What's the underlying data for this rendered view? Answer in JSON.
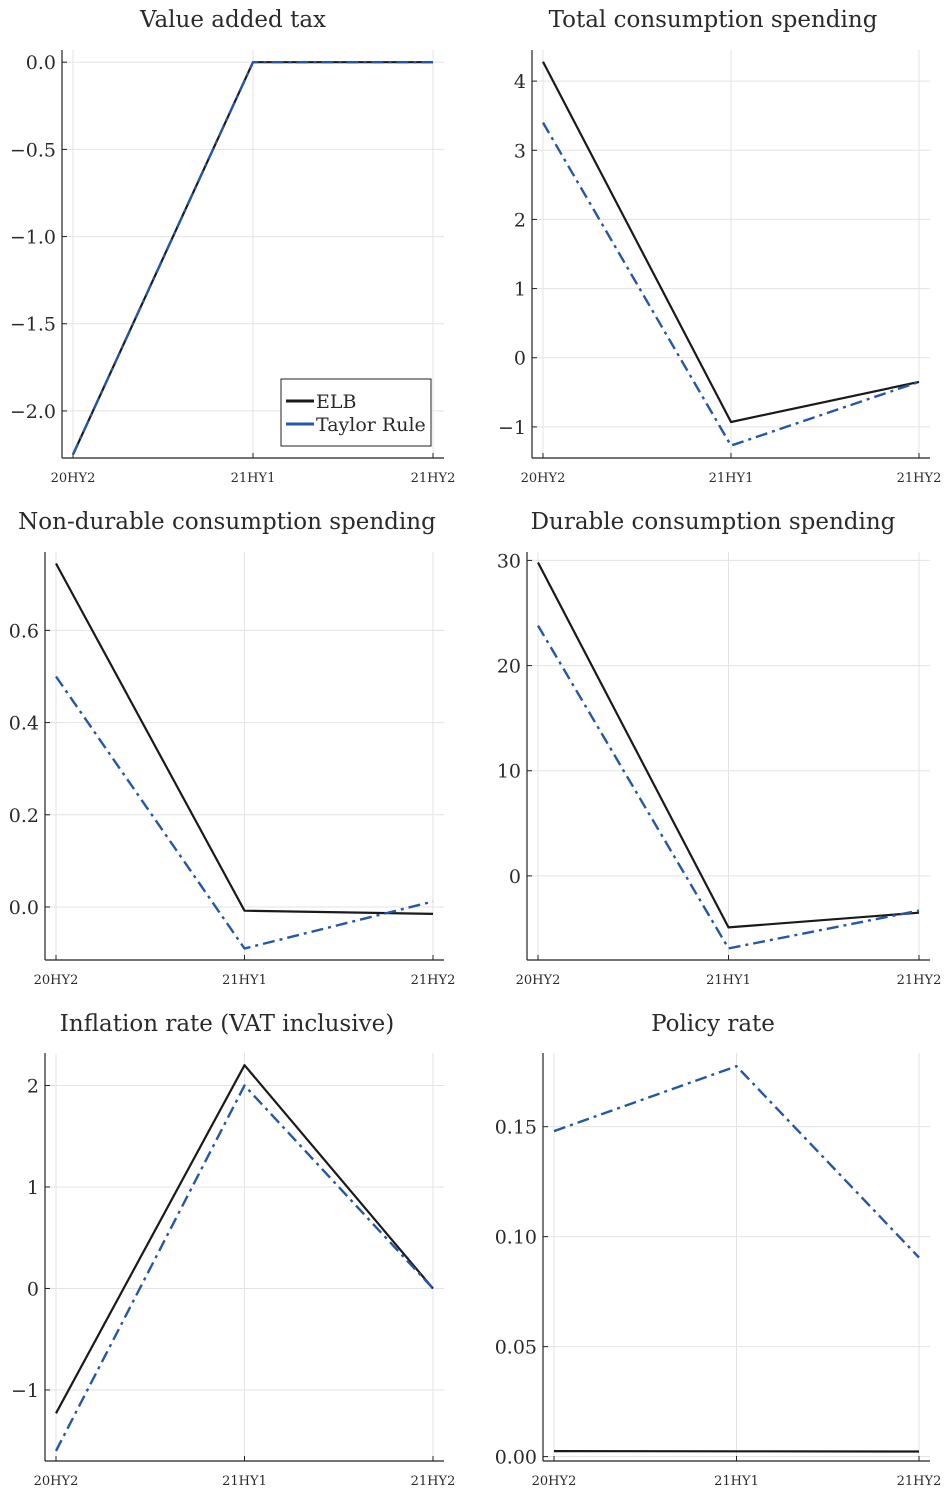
{
  "colors": {
    "ELB": "#1a1a1a",
    "Taylor Rule": "#2557a7"
  },
  "chart_data": [
    {
      "type": "line",
      "title": "Value added tax",
      "categories": [
        "20HY2",
        "21HY1",
        "21HY2"
      ],
      "ylim": [
        -2.27,
        0.07
      ],
      "yticks": [
        0.0,
        -0.5,
        -1.0,
        -1.5,
        -2.0
      ],
      "ytick_labels": [
        "0.0",
        "−0.5",
        "−1.0",
        "−1.5",
        "−2.0"
      ],
      "grid": true,
      "legend": {
        "placement": "bottom-right",
        "entries": [
          "ELB",
          "Taylor Rule"
        ]
      },
      "series": [
        {
          "name": "ELB",
          "style": "solid",
          "values": [
            -2.25,
            0.0,
            0.0
          ]
        },
        {
          "name": "Taylor Rule",
          "style": "dashdot",
          "values": [
            -2.25,
            0.0,
            0.0
          ]
        }
      ]
    },
    {
      "type": "line",
      "title": "Total consumption spending",
      "categories": [
        "20HY2",
        "21HY1",
        "21HY2"
      ],
      "ylim": [
        -1.45,
        4.45
      ],
      "yticks": [
        4,
        3,
        2,
        1,
        0,
        -1
      ],
      "ytick_labels": [
        "4",
        "3",
        "2",
        "1",
        "0",
        "−1"
      ],
      "grid": true,
      "series": [
        {
          "name": "ELB",
          "style": "solid",
          "values": [
            4.28,
            -0.93,
            -0.35
          ]
        },
        {
          "name": "Taylor Rule",
          "style": "dashdot",
          "values": [
            3.4,
            -1.27,
            -0.35
          ]
        }
      ]
    },
    {
      "type": "line",
      "title": "Non-durable consumption spending",
      "categories": [
        "20HY2",
        "21HY1",
        "21HY2"
      ],
      "ylim": [
        -0.115,
        0.77
      ],
      "yticks": [
        0.6,
        0.4,
        0.2,
        0.0
      ],
      "ytick_labels": [
        "0.6",
        "0.4",
        "0.2",
        "0.0"
      ],
      "grid": true,
      "series": [
        {
          "name": "ELB",
          "style": "solid",
          "values": [
            0.745,
            -0.008,
            -0.015
          ]
        },
        {
          "name": "Taylor Rule",
          "style": "dashdot",
          "values": [
            0.5,
            -0.09,
            0.012
          ]
        }
      ]
    },
    {
      "type": "line",
      "title": "Durable consumption spending",
      "categories": [
        "20HY2",
        "21HY1",
        "21HY2"
      ],
      "ylim": [
        -8.0,
        30.8
      ],
      "yticks": [
        30,
        20,
        10,
        0
      ],
      "ytick_labels": [
        "30",
        "20",
        "10",
        "0"
      ],
      "grid": true,
      "series": [
        {
          "name": "ELB",
          "style": "solid",
          "values": [
            29.8,
            -4.9,
            -3.5
          ]
        },
        {
          "name": "Taylor Rule",
          "style": "dashdot",
          "values": [
            23.8,
            -6.9,
            -3.3
          ]
        }
      ]
    },
    {
      "type": "line",
      "title": "Inflation rate (VAT inclusive)",
      "categories": [
        "20HY2",
        "21HY1",
        "21HY2"
      ],
      "ylim": [
        -1.7,
        2.32
      ],
      "yticks": [
        2,
        1,
        0,
        -1
      ],
      "ytick_labels": [
        "2",
        "1",
        "0",
        "−1"
      ],
      "grid": true,
      "series": [
        {
          "name": "ELB",
          "style": "solid",
          "values": [
            -1.23,
            2.2,
            0.0
          ]
        },
        {
          "name": "Taylor Rule",
          "style": "dashdot",
          "values": [
            -1.6,
            2.0,
            0.0
          ]
        }
      ]
    },
    {
      "type": "line",
      "title": "Policy rate",
      "categories": [
        "20HY2",
        "21HY1",
        "21HY2"
      ],
      "ylim": [
        -0.002,
        0.1835
      ],
      "yticks": [
        0.15,
        0.1,
        0.05,
        0.0
      ],
      "ytick_labels": [
        "0.15",
        "0.10",
        "0.05",
        "0.00"
      ],
      "grid": true,
      "series": [
        {
          "name": "ELB",
          "style": "solid",
          "values": [
            0.0025,
            0.0024,
            0.0023
          ]
        },
        {
          "name": "Taylor Rule",
          "style": "dashdot",
          "values": [
            0.148,
            0.1775,
            0.0905
          ]
        }
      ]
    }
  ]
}
